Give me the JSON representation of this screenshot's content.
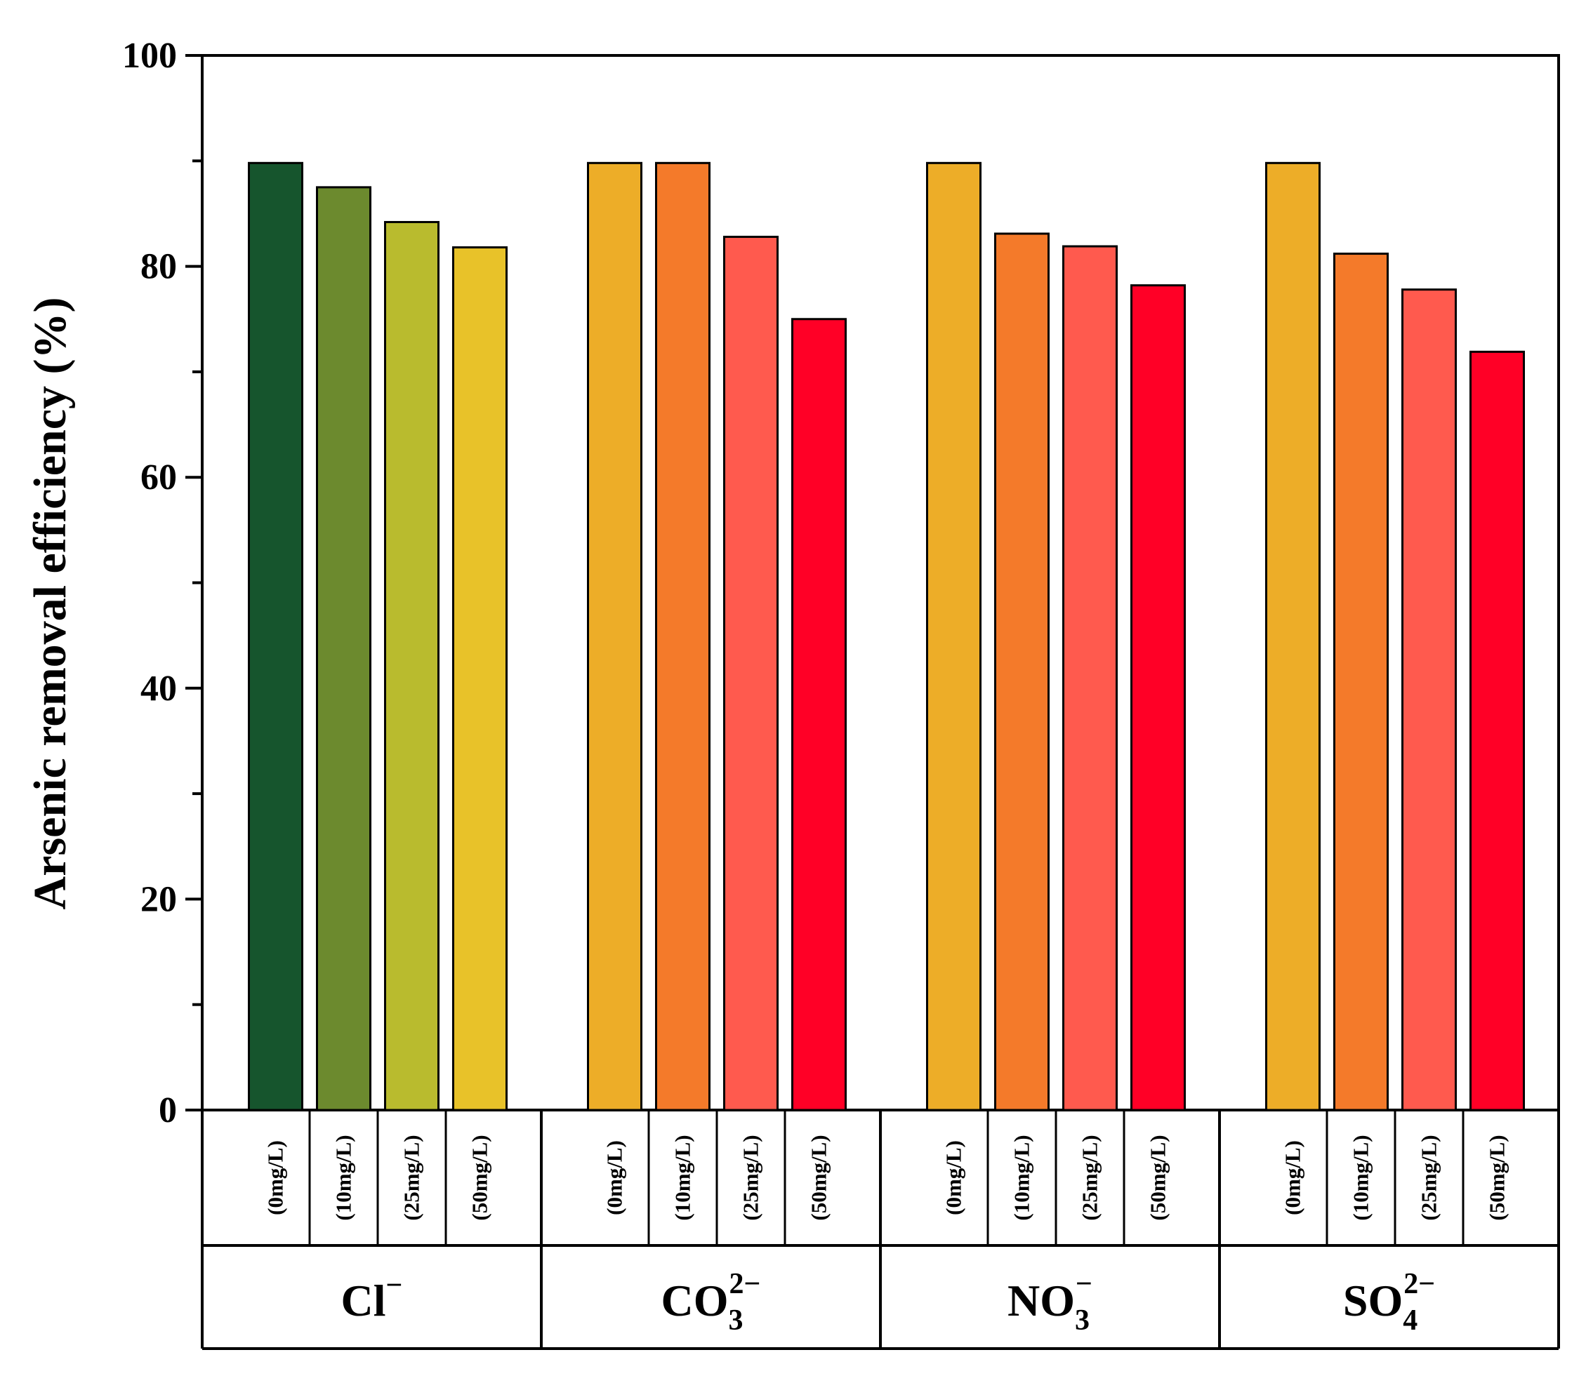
{
  "chart_data": {
    "type": "bar",
    "title": "",
    "ylabel": "Arsenic removal efficiency (%)",
    "xlabel": "",
    "ylim": [
      0,
      100
    ],
    "yticks": [
      0,
      20,
      40,
      60,
      80,
      100
    ],
    "grid": false,
    "groups": [
      {
        "name": "Cl",
        "charge": "−",
        "subscript": "",
        "categories": [
          "(0mg/L)",
          "(10mg/L)",
          "(25mg/L)",
          "(50mg/L)"
        ],
        "values": [
          89.8,
          87.5,
          84.2,
          81.8
        ],
        "colors": [
          "#16552D",
          "#6C8A2E",
          "#B9BB2E",
          "#E8C229"
        ]
      },
      {
        "name": "CO",
        "charge": "2−",
        "subscript": "3",
        "categories": [
          "(0mg/L)",
          "(10mg/L)",
          "(25mg/L)",
          "(50mg/L)"
        ],
        "values": [
          89.8,
          89.8,
          82.8,
          75.0
        ],
        "colors": [
          "#EDAD28",
          "#F47A2A",
          "#FF5A4E",
          "#FF0026"
        ]
      },
      {
        "name": "NO",
        "charge": "−",
        "subscript": "3",
        "categories": [
          "(0mg/L)",
          "(10mg/L)",
          "(25mg/L)",
          "(50mg/L)"
        ],
        "values": [
          89.8,
          83.1,
          81.9,
          78.2
        ],
        "colors": [
          "#EDAD28",
          "#F47A2A",
          "#FF5A4E",
          "#FF0026"
        ]
      },
      {
        "name": "SO",
        "charge": "2−",
        "subscript": "4",
        "categories": [
          "(0mg/L)",
          "(10mg/L)",
          "(25mg/L)",
          "(50mg/L)"
        ],
        "values": [
          89.8,
          81.2,
          77.8,
          71.9
        ],
        "colors": [
          "#EDAD28",
          "#F47A2A",
          "#FF5A4E",
          "#FF0026"
        ]
      }
    ]
  }
}
